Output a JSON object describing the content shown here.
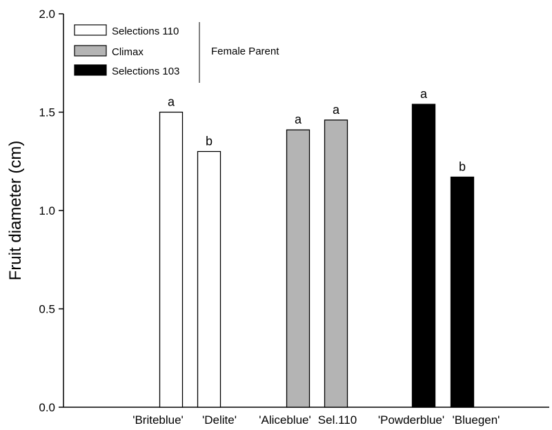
{
  "chart_data": {
    "type": "bar",
    "title": "",
    "xlabel": "",
    "ylabel": "Fruit diameter (cm)",
    "ylim": [
      0,
      2.0
    ],
    "yticks": [
      "0.0",
      "0.5",
      "1.0",
      "1.5",
      "2.0"
    ],
    "categories": [
      "'Briteblue'",
      "'Delite'",
      "'Aliceblue'",
      "Sel.110",
      "'Powderblue'",
      "'Bluegen'"
    ],
    "values": [
      1.5,
      1.3,
      1.41,
      1.46,
      1.54,
      1.17
    ],
    "significance": [
      "a",
      "b",
      "a",
      "a",
      "a",
      "b"
    ],
    "groups": [
      {
        "name": "Selections 110",
        "color": "#ffffff",
        "members": [
          0,
          1
        ]
      },
      {
        "name": "Climax",
        "color": "#b4b4b4",
        "members": [
          2,
          3
        ]
      },
      {
        "name": "Selections 103",
        "color": "#000000",
        "members": [
          4,
          5
        ]
      }
    ],
    "legend_title": "Female Parent",
    "legend_position": "top-left",
    "grid": false
  }
}
